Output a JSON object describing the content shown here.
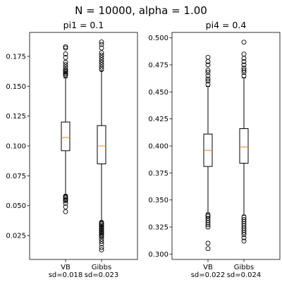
{
  "figure": {
    "suptitle": "N = 10000, alpha = 1.00"
  },
  "chart_data": [
    {
      "type": "boxplot",
      "title": "pi1 = 0.1",
      "ylim": [
        0.005,
        0.195
      ],
      "yticks": [
        0.025,
        0.05,
        0.075,
        0.1,
        0.125,
        0.15,
        0.175
      ],
      "ytick_labels": [
        "0.025",
        "0.050",
        "0.075",
        "0.100",
        "0.125",
        "0.150",
        "0.175"
      ],
      "grid": false,
      "colors": {
        "box": "#000000",
        "median": "#ff7f0e"
      },
      "categories": [
        "VB",
        "Gibbs"
      ],
      "category_sublabels": [
        "sd=0.018",
        "sd=0.023"
      ],
      "boxes": [
        {
          "name": "VB",
          "whislo": 0.059,
          "q1": 0.096,
          "med": 0.107,
          "q3": 0.12,
          "whishi": 0.157,
          "fliers": [
            0.045,
            0.049,
            0.052,
            0.054,
            0.055,
            0.056,
            0.057,
            0.058,
            0.159,
            0.16,
            0.161,
            0.162,
            0.163,
            0.164,
            0.166,
            0.168,
            0.17,
            0.174,
            0.177,
            0.182,
            0.183
          ]
        },
        {
          "name": "Gibbs",
          "whislo": 0.037,
          "q1": 0.085,
          "med": 0.1,
          "q3": 0.117,
          "whishi": 0.163,
          "fliers": [
            0.013,
            0.015,
            0.018,
            0.02,
            0.022,
            0.024,
            0.025,
            0.026,
            0.027,
            0.028,
            0.029,
            0.03,
            0.031,
            0.032,
            0.033,
            0.034,
            0.035,
            0.036,
            0.164,
            0.166,
            0.168,
            0.17,
            0.172,
            0.174,
            0.176,
            0.178,
            0.182,
            0.185,
            0.187
          ]
        }
      ]
    },
    {
      "type": "boxplot",
      "title": "pi4 = 0.4",
      "ylim": [
        0.295,
        0.505
      ],
      "yticks": [
        0.3,
        0.325,
        0.35,
        0.375,
        0.4,
        0.425,
        0.45,
        0.475,
        0.5
      ],
      "ytick_labels": [
        "0.300",
        "0.325",
        "0.350",
        "0.375",
        "0.400",
        "0.425",
        "0.450",
        "0.475",
        "0.500"
      ],
      "grid": false,
      "colors": {
        "box": "#000000",
        "median": "#ff7f0e"
      },
      "categories": [
        "VB",
        "Gibbs"
      ],
      "category_sublabels": [
        "sd=0.022",
        "sd=0.024"
      ],
      "boxes": [
        {
          "name": "VB",
          "whislo": 0.338,
          "q1": 0.381,
          "med": 0.396,
          "q3": 0.411,
          "whishi": 0.455,
          "fliers": [
            0.305,
            0.31,
            0.325,
            0.327,
            0.329,
            0.331,
            0.333,
            0.335,
            0.336,
            0.457,
            0.46,
            0.462,
            0.465,
            0.468,
            0.47,
            0.475,
            0.478,
            0.482
          ]
        },
        {
          "name": "Gibbs",
          "whislo": 0.336,
          "q1": 0.384,
          "med": 0.399,
          "q3": 0.416,
          "whishi": 0.463,
          "fliers": [
            0.312,
            0.315,
            0.318,
            0.32,
            0.322,
            0.324,
            0.326,
            0.328,
            0.33,
            0.332,
            0.334,
            0.465,
            0.468,
            0.47,
            0.472,
            0.475,
            0.478,
            0.481,
            0.485,
            0.496
          ]
        }
      ]
    }
  ]
}
